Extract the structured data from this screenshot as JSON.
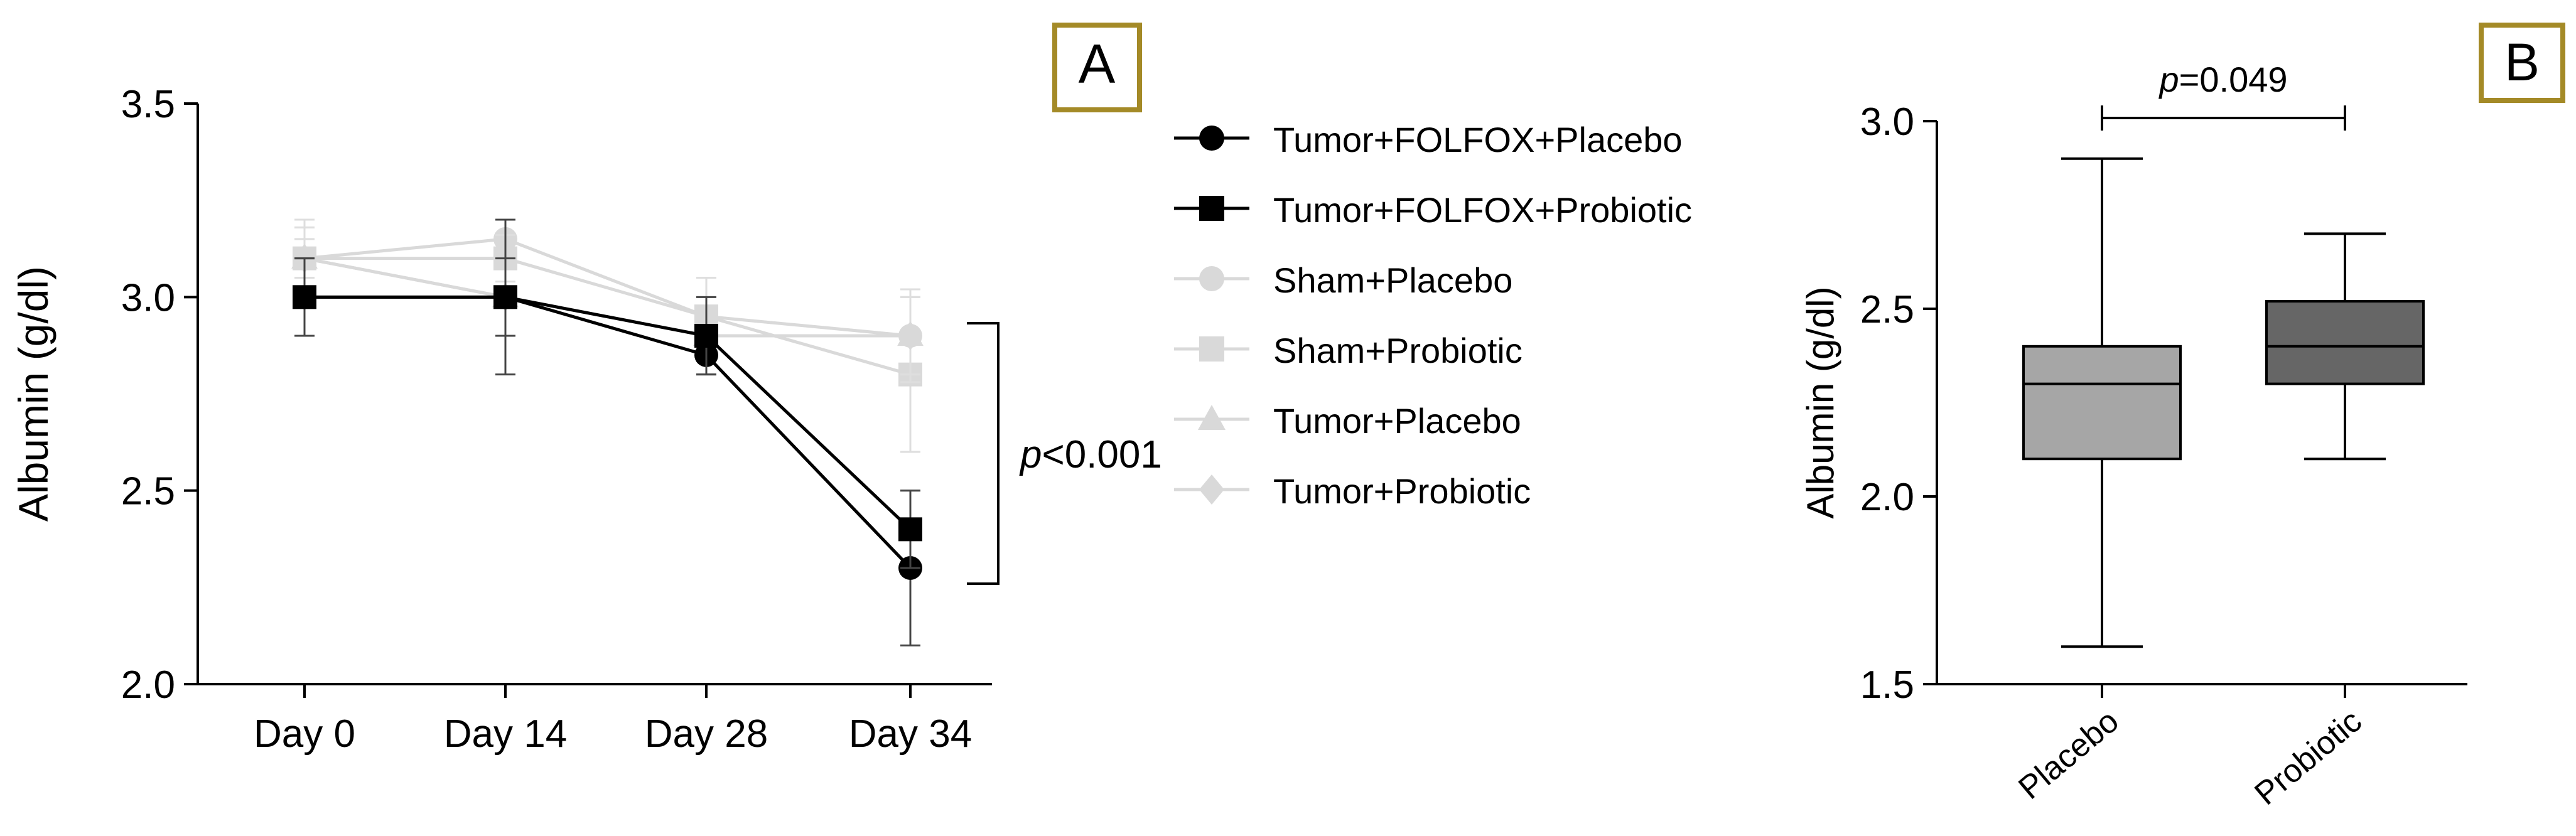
{
  "chart_data": [
    {
      "panel": "A",
      "type": "line",
      "ylabel": "Albumin  (g/dl)",
      "xlabel": "",
      "ylim": [
        2.0,
        3.5
      ],
      "y_ticks": [
        "2.0",
        "2.5",
        "3.0",
        "3.5"
      ],
      "categories": [
        "Day 0",
        "Day 14",
        "Day 28",
        "Day 34"
      ],
      "annotation": {
        "italic": "p",
        "text": "<0.001"
      },
      "series": [
        {
          "name": "Tumor+FOLFOX+Placebo",
          "marker": "circle",
          "color": "#000000",
          "values": [
            3.0,
            3.0,
            2.85,
            2.3
          ],
          "err": [
            0.1,
            0.2,
            0.05,
            0.2
          ]
        },
        {
          "name": "Tumor+FOLFOX+Probiotic",
          "marker": "square",
          "color": "#000000",
          "values": [
            3.0,
            3.0,
            2.9,
            2.4
          ],
          "err": [
            0.1,
            0.1,
            0.1,
            0.1
          ]
        },
        {
          "name": "Sham+Placebo",
          "marker": "circle",
          "color": "#d9d9d9",
          "values": [
            3.1,
            3.15,
            2.95,
            2.9
          ],
          "err": [
            0.08,
            0.05,
            0.1,
            0.1
          ]
        },
        {
          "name": "Sham+Probiotic",
          "marker": "square",
          "color": "#d9d9d9",
          "values": [
            3.1,
            3.1,
            2.95,
            2.8
          ],
          "err": [
            0.08,
            0.06,
            0.1,
            0.2
          ]
        },
        {
          "name": "Tumor+Placebo",
          "marker": "triangle",
          "color": "#d9d9d9",
          "values": [
            3.1,
            3.0,
            2.9,
            2.9
          ],
          "err": [
            0.1,
            0.1,
            0.1,
            0.1
          ]
        },
        {
          "name": "Tumor+Probiotic",
          "marker": "diamond",
          "color": "#d9d9d9",
          "values": [
            3.1,
            3.0,
            2.9,
            2.9
          ],
          "err": [
            0.05,
            0.1,
            0.1,
            0.12
          ]
        }
      ]
    },
    {
      "panel": "B",
      "type": "box",
      "ylabel": "Albumin (g/dl)",
      "xlabel": "",
      "ylim": [
        1.5,
        3.0
      ],
      "y_ticks": [
        "1.5",
        "2.0",
        "2.5",
        "3.0"
      ],
      "categories": [
        "Placebo",
        "Probiotic"
      ],
      "annotation": {
        "italic": "p",
        "text": "=0.049"
      },
      "boxes": [
        {
          "name": "Placebo",
          "min": 1.6,
          "q1": 2.1,
          "median": 2.3,
          "q3": 2.4,
          "max": 2.9,
          "color": "#a6a6a6"
        },
        {
          "name": "Probiotic",
          "min": 2.1,
          "q1": 2.3,
          "median": 2.4,
          "q3": 2.52,
          "max": 2.7,
          "color": "#666666"
        }
      ]
    }
  ]
}
